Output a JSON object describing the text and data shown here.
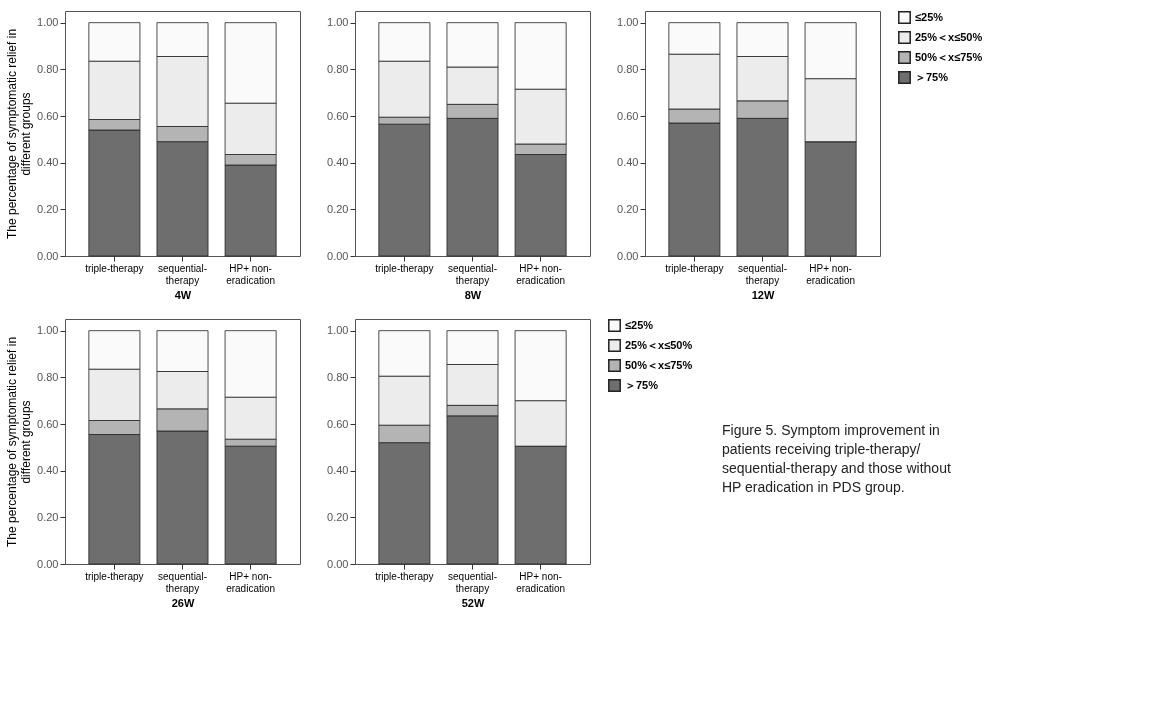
{
  "chart_data": [
    {
      "type": "bar",
      "stacked": true,
      "xlabel": "4W",
      "ylabel": "The percentage of symptomatic relief in different groups",
      "categories": [
        "triple-therapy",
        "sequential-therapy",
        "HP+ non-eradication"
      ],
      "ylim": [
        0,
        1.05
      ],
      "yticks": [
        {
          "value": 0,
          "label": "0.00"
        },
        {
          "value": 0.2,
          "label": "0.20"
        },
        {
          "value": 0.4,
          "label": "0.40"
        },
        {
          "value": 0.6,
          "label": "0.60"
        },
        {
          "value": 0.8,
          "label": "0.80"
        },
        {
          "value": 1,
          "label": "1.00"
        }
      ],
      "legend": false,
      "series": [
        {
          "color": "#6e6e6e",
          "values": [
            0.54,
            0.49,
            0.39
          ]
        },
        {
          "color": "#b4b4b4",
          "values": [
            0.045,
            0.065,
            0.045
          ]
        },
        {
          "color": "#ececec",
          "values": [
            0.25,
            0.3,
            0.22
          ]
        },
        {
          "color": "#fafafa",
          "values": [
            0.165,
            0.145,
            0.345
          ]
        }
      ]
    },
    {
      "type": "bar",
      "stacked": true,
      "xlabel": "8W",
      "categories": [
        "triple-therapy",
        "sequential-therapy",
        "HP+ non-eradication"
      ],
      "ylim": [
        0,
        1.05
      ],
      "yticks": [
        {
          "value": 0,
          "label": "0.00"
        },
        {
          "value": 0.2,
          "label": "0.20"
        },
        {
          "value": 0.4,
          "label": "0.40"
        },
        {
          "value": 0.6,
          "label": "0.60"
        },
        {
          "value": 0.8,
          "label": "0.80"
        },
        {
          "value": 1,
          "label": "1.00"
        }
      ],
      "legend": false,
      "series": [
        {
          "color": "#6e6e6e",
          "values": [
            0.565,
            0.59,
            0.435
          ]
        },
        {
          "color": "#b4b4b4",
          "values": [
            0.03,
            0.06,
            0.045
          ]
        },
        {
          "color": "#ececec",
          "values": [
            0.24,
            0.16,
            0.235
          ]
        },
        {
          "color": "#fafafa",
          "values": [
            0.165,
            0.19,
            0.285
          ]
        }
      ]
    },
    {
      "type": "bar",
      "stacked": true,
      "xlabel": "12W",
      "categories": [
        "triple-therapy",
        "sequential-therapy",
        "HP+ non-eradication"
      ],
      "ylim": [
        0,
        1.05
      ],
      "yticks": [
        {
          "value": 0,
          "label": "0.00"
        },
        {
          "value": 0.2,
          "label": "0.20"
        },
        {
          "value": 0.4,
          "label": "0.40"
        },
        {
          "value": 0.6,
          "label": "0.60"
        },
        {
          "value": 0.8,
          "label": "0.80"
        },
        {
          "value": 1,
          "label": "1.00"
        }
      ],
      "legend": "right",
      "series": [
        {
          "name": "＞75%",
          "color": "#6e6e6e",
          "values": [
            0.57,
            0.59,
            0.49
          ]
        },
        {
          "name": "50%＜x≤75%",
          "color": "#b4b4b4",
          "values": [
            0.06,
            0.075,
            0
          ]
        },
        {
          "name": "25%＜x≤50%",
          "color": "#ececec",
          "values": [
            0.235,
            0.19,
            0.27
          ]
        },
        {
          "name": "≤25%",
          "color": "#fafafa",
          "values": [
            0.135,
            0.145,
            0.24
          ]
        }
      ]
    },
    {
      "type": "bar",
      "stacked": true,
      "xlabel": "26W",
      "ylabel": "The percentage of symptomatic relief in different groups",
      "categories": [
        "triple-therapy",
        "sequential-therapy",
        "HP+ non-eradication"
      ],
      "ylim": [
        0,
        1.05
      ],
      "yticks": [
        {
          "value": 0,
          "label": "0.00"
        },
        {
          "value": 0.2,
          "label": "0.20"
        },
        {
          "value": 0.4,
          "label": "0.40"
        },
        {
          "value": 0.6,
          "label": "0.60"
        },
        {
          "value": 0.8,
          "label": "0.80"
        },
        {
          "value": 1,
          "label": "1.00"
        }
      ],
      "legend": false,
      "series": [
        {
          "color": "#6e6e6e",
          "values": [
            0.555,
            0.57,
            0.505
          ]
        },
        {
          "color": "#b4b4b4",
          "values": [
            0.06,
            0.095,
            0.03
          ]
        },
        {
          "color": "#ececec",
          "values": [
            0.22,
            0.16,
            0.18
          ]
        },
        {
          "color": "#fafafa",
          "values": [
            0.165,
            0.175,
            0.285
          ]
        }
      ]
    },
    {
      "type": "bar",
      "stacked": true,
      "xlabel": "52W",
      "categories": [
        "triple-therapy",
        "sequential-therapy",
        "HP+ non-eradication"
      ],
      "ylim": [
        0,
        1.05
      ],
      "yticks": [
        {
          "value": 0,
          "label": "0.00"
        },
        {
          "value": 0.2,
          "label": "0.20"
        },
        {
          "value": 0.4,
          "label": "0.40"
        },
        {
          "value": 0.6,
          "label": "0.60"
        },
        {
          "value": 0.8,
          "label": "0.80"
        },
        {
          "value": 1,
          "label": "1.00"
        }
      ],
      "legend": "right",
      "annotations": [
        "Figure 5. Symptom improvement in patients receiving triple-therapy/ sequential-therapy and those without HP eradication in PDS group."
      ],
      "series": [
        {
          "name": "＞75%",
          "color": "#6e6e6e",
          "values": [
            0.52,
            0.635,
            0.505
          ]
        },
        {
          "name": "50%＜x≤75%",
          "color": "#b4b4b4",
          "values": [
            0.075,
            0.045,
            0
          ]
        },
        {
          "name": "25%＜x≤50%",
          "color": "#ececec",
          "values": [
            0.21,
            0.175,
            0.195
          ]
        },
        {
          "name": "≤25%",
          "color": "#fafafa",
          "values": [
            0.195,
            0.145,
            0.3
          ]
        }
      ]
    }
  ]
}
